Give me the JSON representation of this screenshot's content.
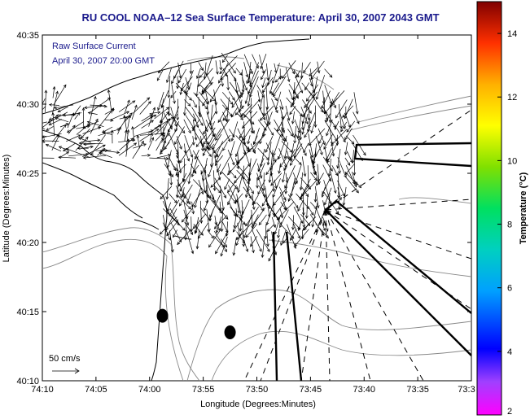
{
  "title": "RU COOL  NOAA–12  Sea Surface Temperature:  April 30, 2007 2043 GMT",
  "annotation": {
    "line1": "Raw Surface Current",
    "line2": "April 30, 2007 20:00 GMT"
  },
  "scale_label": "50 cm/s",
  "colors": {
    "title": "#1a1a8c",
    "annotation": "#1a1a8c",
    "coast": "#000000",
    "bathymetry": "#888888",
    "vectors": "#000000"
  },
  "chart_data": {
    "type": "map",
    "xlabel": "Longitude (Degrees:Minutes)",
    "ylabel": "Latitude (Degrees:Minutes)",
    "x_ticks": [
      "74:10",
      "74:05",
      "74:00",
      "73:55",
      "73:50",
      "73:45",
      "73:40",
      "73:35",
      "73:3"
    ],
    "y_ticks": [
      "40:35",
      "40:30",
      "40:25",
      "40:20",
      "40:15",
      "40:10"
    ],
    "xlim_minutes_west": [
      70,
      30
    ],
    "ylim_minutes_north": [
      10,
      35
    ],
    "colorbar": {
      "label": "Temperature (°C)",
      "range": [
        2,
        15
      ],
      "ticks": [
        "14",
        "12",
        "10",
        "8",
        "6",
        "4",
        "2"
      ]
    },
    "markers": [
      {
        "lon_min": 58.8,
        "lat_min": 14.7
      },
      {
        "lon_min": 52.5,
        "lat_min": 13.5
      }
    ]
  }
}
